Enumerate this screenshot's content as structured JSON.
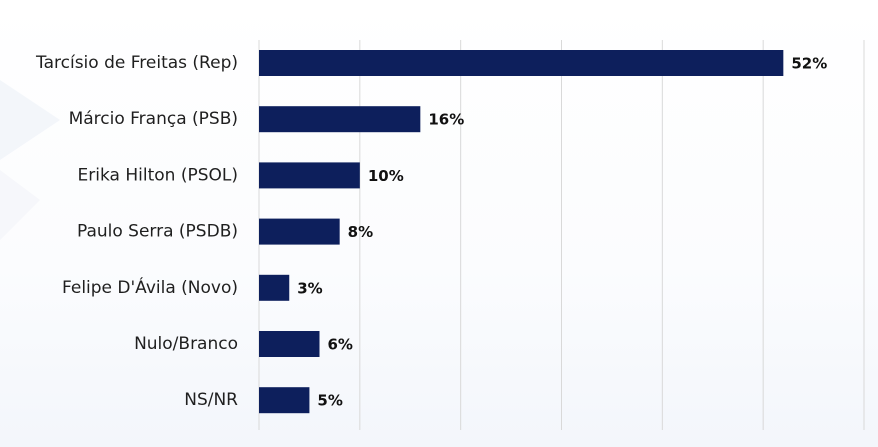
{
  "chart_data": {
    "type": "bar",
    "orientation": "horizontal",
    "categories": [
      "Tarcísio de Freitas (Rep)",
      "Márcio França (PSB)",
      "Erika Hilton (PSOL)",
      "Paulo Serra (PSDB)",
      "Felipe D'Ávila (Novo)",
      "Nulo/Branco",
      "NS/NR"
    ],
    "values": [
      52,
      16,
      10,
      8,
      3,
      6,
      5
    ],
    "value_labels": [
      "52%",
      "16%",
      "10%",
      "8%",
      "3%",
      "6%",
      "5%"
    ],
    "title": "",
    "xlabel": "",
    "ylabel": "",
    "xlim": [
      0,
      60
    ],
    "grid": true,
    "gridlines_at": [
      0,
      10,
      20,
      30,
      40,
      50,
      60
    ],
    "legend": "none",
    "colors": {
      "bar": "#0d1f5c",
      "grid": "#d9d9d9",
      "label": "#1f1f1f",
      "value_label": "#111111"
    }
  }
}
